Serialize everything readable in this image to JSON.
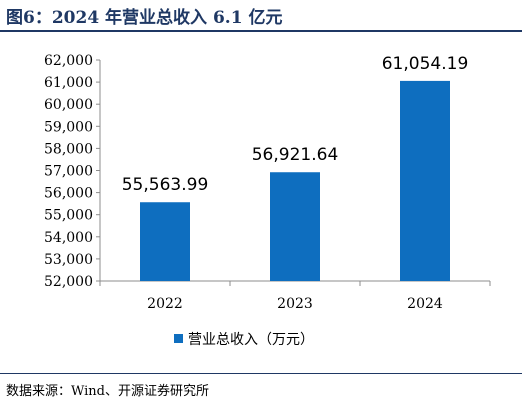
{
  "figure": {
    "title": "图6：2024 年营业总收入 6.1 亿元",
    "source": "数据来源：Wind、开源证券研究所"
  },
  "chart_data": {
    "type": "bar",
    "categories": [
      "2022",
      "2023",
      "2024"
    ],
    "series": [
      {
        "name": "营业总收入（万元）",
        "values": [
          55563.99,
          56921.64,
          61054.19
        ]
      }
    ],
    "data_labels": [
      "55,563.99",
      "56,921.64",
      "61,054.19"
    ],
    "ylim": [
      52000,
      62000
    ],
    "ytick_step": 1000,
    "ytick_labels": [
      "52,000",
      "53,000",
      "54,000",
      "55,000",
      "56,000",
      "57,000",
      "58,000",
      "59,000",
      "60,000",
      "61,000",
      "62,000"
    ],
    "grid": false,
    "legend_position": "bottom-center",
    "bar_color": "#0e6ebf",
    "xlabel": "",
    "ylabel": ""
  }
}
